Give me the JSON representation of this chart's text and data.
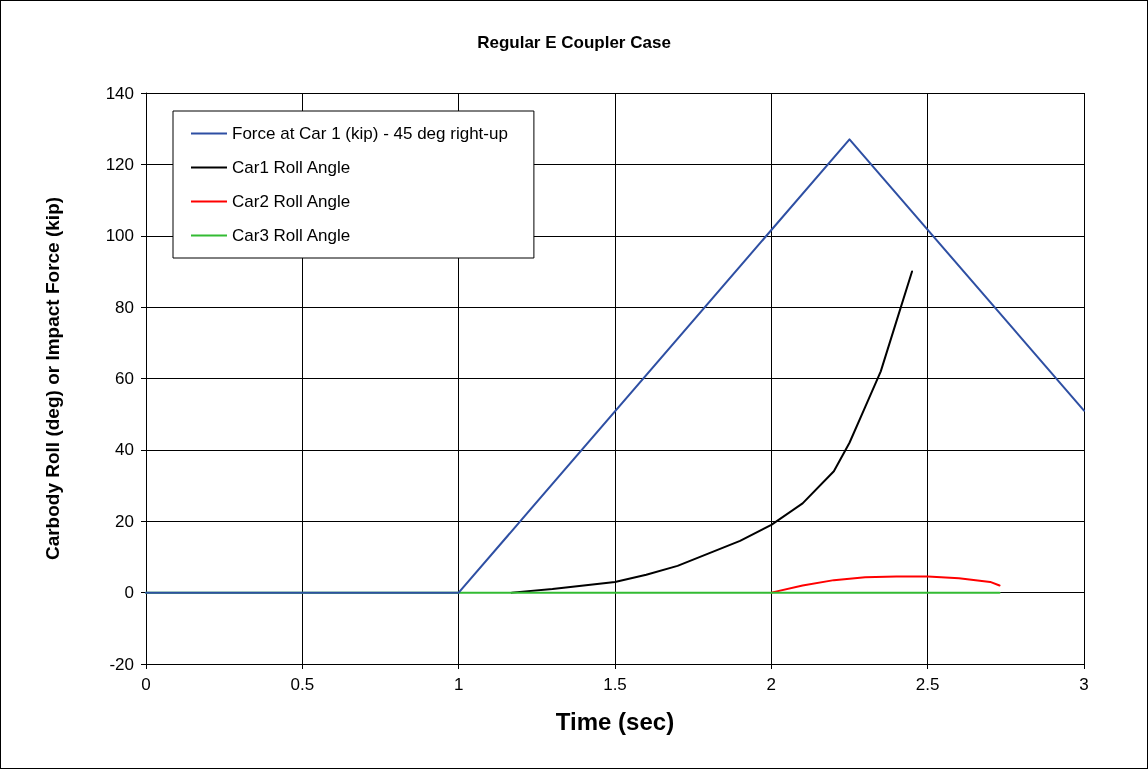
{
  "chart_data": {
    "type": "line",
    "title": "Regular E Coupler Case",
    "xlabel": "Time (sec)",
    "ylabel": "Carbody Roll (deg) or Impact Force (kip)",
    "xlim": [
      0,
      3
    ],
    "xticks": [
      0,
      0.5,
      1,
      1.5,
      2,
      2.5,
      3
    ],
    "ylim": [
      -20,
      140
    ],
    "yticks": [
      -20,
      0,
      20,
      40,
      60,
      80,
      100,
      120,
      140
    ],
    "grid": true,
    "legend": "top left",
    "marker": "none",
    "line_style": "solid",
    "series": [
      {
        "name": "Force at Car 1 (kip) - 45 deg right-up",
        "color": "#2e4fa3",
        "x": [
          0,
          1,
          2.25,
          3
        ],
        "values": [
          0,
          0,
          127,
          51
        ]
      },
      {
        "name": "Car1 Roll Angle",
        "color": "#000000",
        "x": [
          1.17,
          1.3,
          1.5,
          1.6,
          1.7,
          1.8,
          1.9,
          2.0,
          2.1,
          2.2,
          2.25,
          2.3,
          2.35,
          2.4,
          2.45
        ],
        "values": [
          0,
          1,
          3,
          5,
          7.5,
          11,
          14.5,
          19,
          25,
          34,
          42,
          52,
          62,
          76,
          90
        ]
      },
      {
        "name": "Car2 Roll Angle",
        "color": "#ff0000",
        "x": [
          2.0,
          2.1,
          2.2,
          2.3,
          2.4,
          2.5,
          2.6,
          2.7,
          2.73
        ],
        "values": [
          0,
          2,
          3.5,
          4.3,
          4.5,
          4.5,
          4,
          3,
          2
        ]
      },
      {
        "name": "Car3 Roll Angle",
        "color": "#33bb33",
        "x": [
          0,
          2.73
        ],
        "values": [
          0,
          0
        ]
      }
    ]
  }
}
